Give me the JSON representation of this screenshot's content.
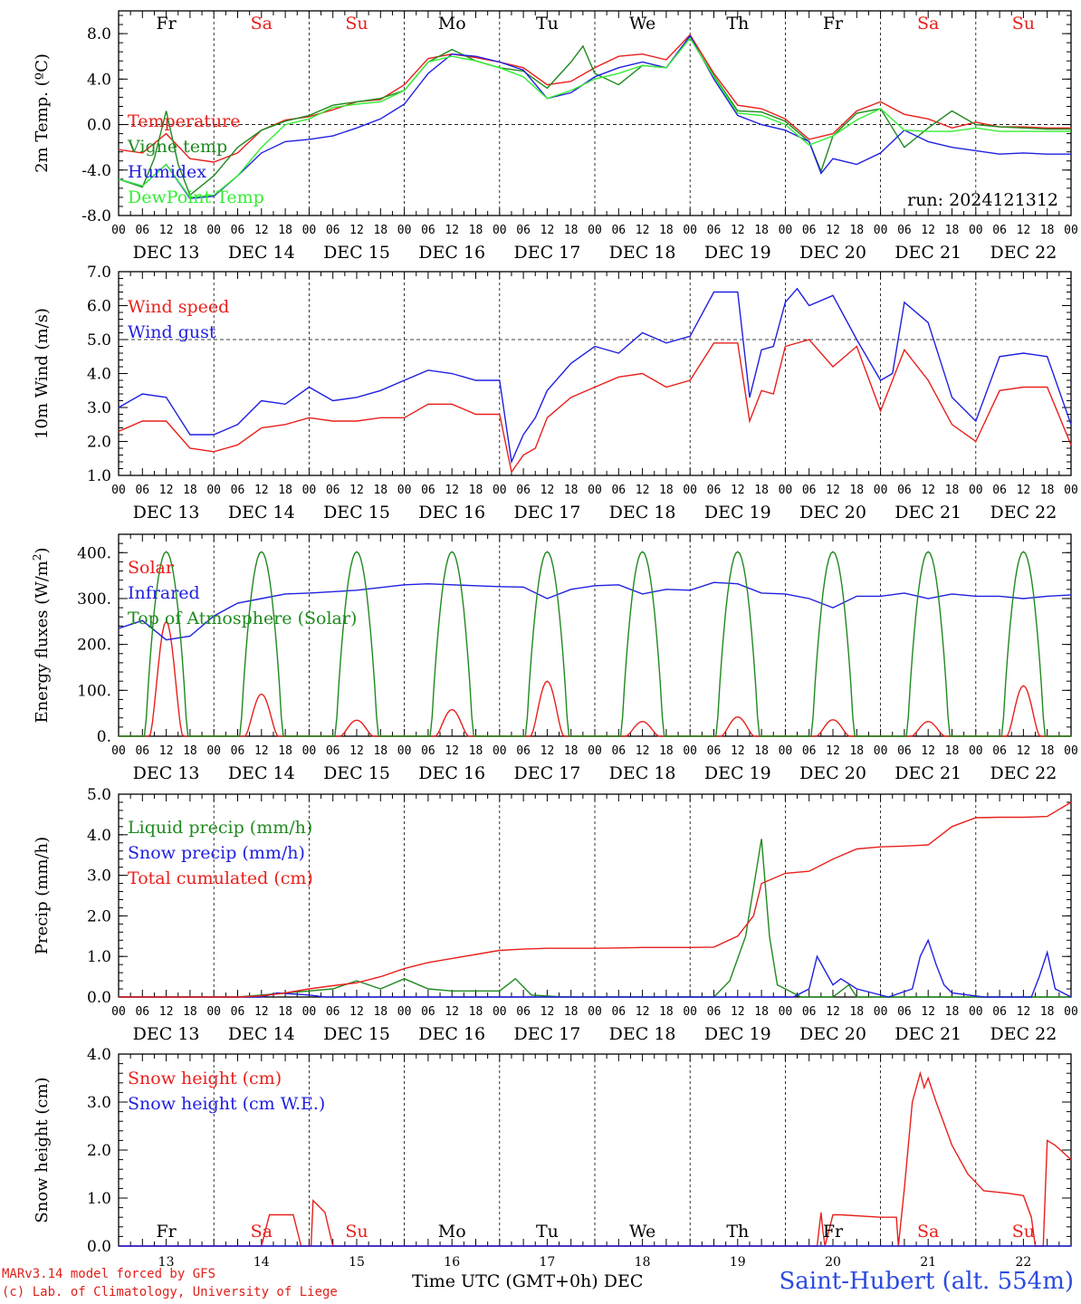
{
  "run_label": "run: 2024121312",
  "footer": {
    "credit_line1": "MARv3.14 model forced by GFS",
    "credit_line2": "(c) Lab. of Climatology, University of Liege",
    "x_title": "Time UTC (GMT+0h) DEC",
    "station": "Saint-Hubert (alt. 554m)"
  },
  "colors": {
    "red": "#e8201c",
    "green": "#1f8a1f",
    "blue": "#2020e0",
    "lightgreen": "#33ee33",
    "weekend": "#e8201c"
  },
  "days": [
    "Fr",
    "Sa",
    "Su",
    "Mo",
    "Tu",
    "We",
    "Th",
    "Fr",
    "Sa",
    "Su"
  ],
  "day_colors": [
    "black",
    "red",
    "red",
    "black",
    "black",
    "black",
    "black",
    "black",
    "red",
    "red"
  ],
  "dates": [
    "DEC 13",
    "DEC 14",
    "DEC 15",
    "DEC 16",
    "DEC 17",
    "DEC 18",
    "DEC 19",
    "DEC 20",
    "DEC 21",
    "DEC 22"
  ],
  "date_numbers": [
    "13",
    "14",
    "15",
    "16",
    "17",
    "18",
    "19",
    "20",
    "21",
    "22"
  ],
  "hour_labels": [
    "00",
    "06",
    "12",
    "18"
  ],
  "chart_data": [
    {
      "type": "line",
      "ylabel": "2m Temp. (ºC)",
      "ylim": [
        -8,
        10
      ],
      "yticks": [
        "-8.0",
        "-4.0",
        "0.0",
        "4.0",
        "8.0"
      ],
      "ytick_values": [
        -8,
        -4,
        0,
        4,
        8
      ],
      "ref_line": 0,
      "x_unit": "hours since DEC 13 00 UTC",
      "series": [
        {
          "name": "Temperature",
          "color": "#e8201c",
          "x": [
            0,
            6,
            12,
            18,
            24,
            30,
            36,
            42,
            48,
            54,
            60,
            66,
            72,
            78,
            84,
            90,
            96,
            102,
            108,
            114,
            120,
            126,
            132,
            138,
            144,
            150,
            156,
            162,
            168,
            174,
            180,
            186,
            192,
            198,
            204,
            210,
            216,
            222,
            228,
            234,
            240
          ],
          "y": [
            -2.2,
            -2.5,
            -0.8,
            -3.0,
            -3.3,
            -2.5,
            -0.5,
            0.4,
            0.7,
            1.3,
            2.0,
            2.2,
            3.5,
            5.8,
            6.2,
            5.9,
            5.5,
            5.0,
            3.5,
            3.8,
            5.0,
            6.0,
            6.2,
            5.7,
            7.9,
            4.5,
            1.7,
            1.4,
            0.5,
            -1.3,
            -0.8,
            1.2,
            2.0,
            0.9,
            0.5,
            -0.3,
            0.2,
            -0.2,
            -0.2,
            -0.3,
            -0.3
          ]
        },
        {
          "name": "Vigne temp",
          "color": "#1f8a1f",
          "x": [
            0,
            6,
            9,
            12,
            15,
            18,
            24,
            30,
            36,
            42,
            48,
            54,
            60,
            66,
            72,
            78,
            84,
            90,
            96,
            102,
            108,
            114,
            117,
            120,
            126,
            132,
            138,
            144,
            150,
            156,
            162,
            168,
            174,
            177,
            180,
            186,
            192,
            198,
            204,
            210,
            216,
            222,
            228,
            234,
            240
          ],
          "y": [
            -4.8,
            -5.5,
            -3.0,
            1.2,
            -3.5,
            -6.2,
            -4.5,
            -2.0,
            -0.5,
            0.3,
            0.8,
            1.7,
            2.0,
            2.3,
            3.0,
            5.5,
            6.6,
            5.6,
            5.0,
            4.7,
            3.2,
            5.5,
            6.9,
            4.5,
            3.5,
            5.2,
            5.0,
            7.6,
            4.3,
            1.2,
            1.1,
            0.3,
            -1.5,
            -4.1,
            -1.0,
            1.0,
            1.4,
            -2.0,
            -0.3,
            1.2,
            0.0,
            -0.2,
            -0.3,
            -0.4,
            -0.4
          ]
        },
        {
          "name": "Humidex",
          "color": "#2020e0",
          "x": [
            0,
            6,
            12,
            18,
            24,
            30,
            36,
            42,
            48,
            54,
            60,
            66,
            72,
            78,
            84,
            90,
            96,
            102,
            108,
            114,
            120,
            126,
            132,
            138,
            144,
            150,
            156,
            162,
            168,
            174,
            177,
            180,
            186,
            192,
            198,
            204,
            210,
            216,
            222,
            228,
            234,
            240
          ],
          "y": [
            -4.8,
            -5.4,
            -3.5,
            -6.5,
            -6.3,
            -4.5,
            -2.5,
            -1.5,
            -1.3,
            -1.0,
            -0.3,
            0.5,
            1.8,
            4.5,
            6.2,
            6.0,
            5.5,
            4.8,
            2.3,
            2.8,
            4.2,
            5.0,
            5.5,
            5.0,
            7.8,
            4.0,
            0.8,
            0.0,
            -0.5,
            -1.5,
            -4.3,
            -3.0,
            -3.5,
            -2.5,
            -0.5,
            -1.5,
            -2.0,
            -2.3,
            -2.6,
            -2.5,
            -2.6,
            -2.6
          ]
        },
        {
          "name": "DewPoint Temp",
          "color": "#33ee33",
          "x": [
            0,
            6,
            12,
            18,
            24,
            30,
            36,
            42,
            48,
            54,
            60,
            66,
            72,
            78,
            84,
            90,
            96,
            102,
            108,
            114,
            120,
            126,
            132,
            138,
            144,
            150,
            156,
            162,
            168,
            174,
            180,
            186,
            192,
            198,
            204,
            210,
            216,
            222,
            228,
            234,
            240
          ],
          "y": [
            -4.8,
            -5.4,
            -3.5,
            -6.4,
            -6.2,
            -4.5,
            -2.0,
            0.0,
            0.5,
            1.5,
            1.8,
            2.0,
            3.0,
            5.5,
            6.0,
            5.6,
            5.0,
            4.2,
            2.3,
            3.0,
            4.0,
            4.5,
            5.2,
            5.0,
            7.6,
            4.2,
            1.0,
            0.8,
            0.0,
            -1.8,
            -1.0,
            0.4,
            1.4,
            -0.5,
            -0.6,
            -0.6,
            -0.3,
            -0.6,
            -0.6,
            -0.6,
            -0.6
          ]
        }
      ]
    },
    {
      "type": "line",
      "ylabel": "10m Wind (m/s)",
      "ylim": [
        1,
        7
      ],
      "yticks": [
        "1.0",
        "2.0",
        "3.0",
        "4.0",
        "5.0",
        "6.0",
        "7.0"
      ],
      "ytick_values": [
        1,
        2,
        3,
        4,
        5,
        6,
        7
      ],
      "ref_line": 5,
      "series": [
        {
          "name": "Wind speed",
          "color": "#e8201c",
          "x": [
            0,
            6,
            12,
            18,
            24,
            30,
            36,
            42,
            48,
            54,
            60,
            66,
            72,
            78,
            84,
            90,
            96,
            99,
            102,
            105,
            108,
            114,
            120,
            126,
            132,
            138,
            144,
            150,
            156,
            159,
            162,
            165,
            168,
            174,
            180,
            186,
            192,
            198,
            204,
            210,
            216,
            222,
            228,
            234,
            240
          ],
          "y": [
            2.3,
            2.6,
            2.6,
            1.8,
            1.7,
            1.9,
            2.4,
            2.5,
            2.7,
            2.6,
            2.6,
            2.7,
            2.7,
            3.1,
            3.1,
            2.8,
            2.8,
            1.1,
            1.6,
            1.8,
            2.7,
            3.3,
            3.6,
            3.9,
            4.0,
            3.6,
            3.8,
            4.9,
            4.9,
            2.6,
            3.5,
            3.4,
            4.8,
            5.0,
            4.2,
            4.8,
            2.9,
            4.7,
            3.8,
            2.5,
            2.0,
            3.5,
            3.6,
            3.6,
            1.9
          ]
        },
        {
          "name": "Wind gust",
          "color": "#2020e0",
          "x": [
            0,
            6,
            12,
            18,
            24,
            30,
            36,
            42,
            48,
            54,
            60,
            66,
            72,
            78,
            84,
            90,
            96,
            99,
            102,
            105,
            108,
            114,
            120,
            126,
            132,
            138,
            144,
            150,
            156,
            159,
            162,
            165,
            168,
            171,
            174,
            180,
            186,
            192,
            195,
            198,
            204,
            210,
            216,
            222,
            228,
            234,
            240
          ],
          "y": [
            3.0,
            3.4,
            3.3,
            2.2,
            2.2,
            2.5,
            3.2,
            3.1,
            3.6,
            3.2,
            3.3,
            3.5,
            3.8,
            4.1,
            4.0,
            3.8,
            3.8,
            1.4,
            2.2,
            2.7,
            3.5,
            4.3,
            4.8,
            4.6,
            5.2,
            4.9,
            5.1,
            6.4,
            6.4,
            3.3,
            4.7,
            4.8,
            6.1,
            6.5,
            6.0,
            6.3,
            5.0,
            3.8,
            4.0,
            6.1,
            5.5,
            3.3,
            2.6,
            4.5,
            4.6,
            4.5,
            2.5
          ]
        }
      ]
    },
    {
      "type": "line",
      "ylabel": "Energy fluxes (W/m²)",
      "ylabel_main": "Energy fluxes (W/m",
      "ylabel_sup": "2",
      "ylabel_tail": ")",
      "ylim": [
        0,
        440
      ],
      "yticks": [
        "0.",
        "100.",
        "200.",
        "300.",
        "400."
      ],
      "ytick_values": [
        0,
        100,
        200,
        300,
        400
      ],
      "daily_peaks": {
        "Solar": [
          250,
          92,
          35,
          58,
          120,
          32,
          42,
          36,
          32,
          110
        ],
        "Top of Atmosphere (Solar)": [
          402,
          402,
          402,
          402,
          402,
          402,
          402,
          402,
          402,
          402
        ]
      },
      "series": [
        {
          "name": "Solar",
          "color": "#e8201c"
        },
        {
          "name": "Infrared",
          "color": "#2020e0",
          "x": [
            0,
            6,
            12,
            18,
            24,
            30,
            36,
            42,
            48,
            54,
            60,
            66,
            72,
            78,
            84,
            90,
            96,
            102,
            108,
            114,
            120,
            126,
            132,
            138,
            144,
            150,
            156,
            162,
            168,
            174,
            180,
            186,
            192,
            198,
            204,
            210,
            216,
            222,
            228,
            234,
            240
          ],
          "y": [
            235,
            252,
            210,
            218,
            262,
            290,
            300,
            310,
            312,
            315,
            318,
            324,
            330,
            332,
            330,
            328,
            326,
            325,
            300,
            320,
            328,
            330,
            310,
            320,
            318,
            335,
            332,
            312,
            310,
            300,
            280,
            305,
            305,
            312,
            300,
            310,
            305,
            305,
            300,
            305,
            308
          ]
        },
        {
          "name": "Top of Atmosphere (Solar)",
          "color": "#1f8a1f"
        }
      ]
    },
    {
      "type": "line",
      "ylabel": "Precip (mm/h)",
      "ylim": [
        0,
        5
      ],
      "yticks": [
        "0.0",
        "1.0",
        "2.0",
        "3.0",
        "4.0",
        "5.0"
      ],
      "ytick_values": [
        0,
        1,
        2,
        3,
        4,
        5
      ],
      "series": [
        {
          "name": "Liquid precip (mm/h)",
          "color": "#1f8a1f",
          "x": [
            0,
            30,
            36,
            42,
            48,
            54,
            60,
            66,
            72,
            78,
            84,
            96,
            100,
            104,
            112,
            150,
            154,
            158,
            162,
            164,
            166,
            168,
            172,
            176,
            180,
            184,
            186,
            240
          ],
          "y": [
            0,
            0,
            0.05,
            0.1,
            0.15,
            0.2,
            0.4,
            0.2,
            0.45,
            0.2,
            0.15,
            0.15,
            0.45,
            0.05,
            0,
            0,
            0.4,
            1.5,
            3.9,
            1.5,
            0.3,
            0.2,
            0.0,
            0.0,
            0.0,
            0.3,
            0.0,
            0
          ]
        },
        {
          "name": "Snow precip (mm/h)",
          "color": "#2020e0",
          "x": [
            0,
            36,
            40,
            48,
            52,
            170,
            174,
            176,
            180,
            182,
            186,
            190,
            194,
            200,
            202,
            204,
            206,
            208,
            210,
            218,
            230,
            232,
            234,
            236,
            240
          ],
          "y": [
            0,
            0,
            0.1,
            0.05,
            0,
            0,
            0.2,
            1.0,
            0.3,
            0.45,
            0.2,
            0.1,
            0,
            0.2,
            1.0,
            1.4,
            0.8,
            0.3,
            0.1,
            0,
            0,
            0.5,
            1.1,
            0.2,
            0
          ]
        },
        {
          "name": "Total cumulated (cm)",
          "color": "#e8201c",
          "x": [
            0,
            30,
            36,
            42,
            48,
            54,
            60,
            66,
            72,
            78,
            84,
            90,
            96,
            102,
            108,
            114,
            120,
            126,
            132,
            138,
            144,
            150,
            156,
            160,
            162,
            168,
            174,
            180,
            186,
            192,
            198,
            204,
            210,
            216,
            222,
            228,
            234,
            240
          ],
          "y": [
            0,
            0,
            0.03,
            0.1,
            0.2,
            0.28,
            0.35,
            0.5,
            0.7,
            0.85,
            0.95,
            1.05,
            1.15,
            1.18,
            1.2,
            1.2,
            1.2,
            1.21,
            1.22,
            1.22,
            1.22,
            1.23,
            1.5,
            2.0,
            2.8,
            3.05,
            3.1,
            3.4,
            3.65,
            3.7,
            3.72,
            3.75,
            4.2,
            4.42,
            4.43,
            4.43,
            4.45,
            4.8
          ]
        }
      ]
    },
    {
      "type": "line",
      "ylabel": "Snow height (cm)",
      "ylim": [
        0,
        4
      ],
      "yticks": [
        "0.0",
        "1.0",
        "2.0",
        "3.0",
        "4.0"
      ],
      "ytick_values": [
        0,
        1,
        2,
        3,
        4
      ],
      "series": [
        {
          "name": "Snow height (cm)",
          "color": "#e8201c",
          "x": [
            0,
            36,
            38,
            42,
            44,
            46,
            48,
            48.5,
            49,
            52,
            54,
            176,
            177,
            177.5,
            178,
            180,
            182,
            192,
            196,
            196.5,
            198,
            200,
            202,
            203,
            204,
            206,
            210,
            214,
            218,
            224,
            228,
            230,
            231,
            232,
            233,
            234,
            236,
            240
          ],
          "y": [
            0,
            0,
            0.65,
            0.65,
            0.65,
            0,
            0,
            0,
            0.95,
            0.7,
            0,
            0,
            0.7,
            0.3,
            0,
            0.65,
            0.65,
            0.6,
            0.6,
            0,
            1.2,
            3.0,
            3.6,
            3.3,
            3.5,
            3.0,
            2.1,
            1.5,
            1.15,
            1.1,
            1.05,
            0.6,
            0,
            0,
            0,
            2.2,
            2.1,
            1.8
          ]
        },
        {
          "name": "Snow height (cm W.E.)",
          "color": "#2020e0",
          "x": [
            0,
            240
          ],
          "y": [
            0,
            0
          ]
        }
      ]
    }
  ]
}
